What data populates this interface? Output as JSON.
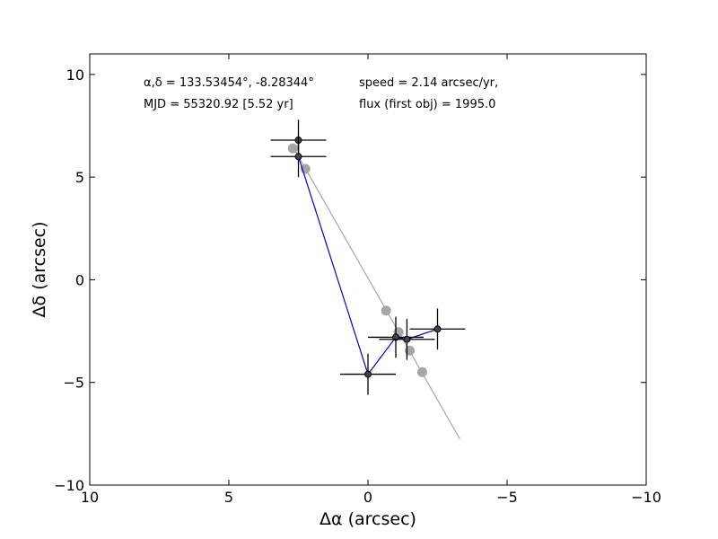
{
  "chart_data": {
    "type": "scatter",
    "title": "",
    "xlabel": "Δα (arcsec)",
    "ylabel": "Δδ (arcsec)",
    "xlim": [
      10,
      -10
    ],
    "ylim": [
      -10,
      11
    ],
    "xticks": [
      10,
      5,
      0,
      -5,
      -10
    ],
    "yticks": [
      10,
      5,
      0,
      -5,
      -10
    ],
    "xtick_labels": [
      "10",
      "5",
      "0",
      "−5",
      "−10"
    ],
    "ytick_labels": [
      "10",
      "5",
      "0",
      "−5",
      "−10"
    ],
    "grid": false,
    "annotations": {
      "coords": "α,δ = 133.53454°, -8.28344°",
      "speed": "speed = 2.14 arcsec/yr,",
      "mjd": "MJD = 55320.92 [5.52 yr]",
      "flux": "flux (first obj) = 1995.0"
    },
    "observations": {
      "color": "#000000",
      "line_color": "#0000cc",
      "points": [
        {
          "x": 2.5,
          "y": 6.8,
          "xerr": 1.0,
          "yerr": 1.0
        },
        {
          "x": 2.5,
          "y": 6.0,
          "xerr": 1.0,
          "yerr": 1.0
        },
        {
          "x": 0.0,
          "y": -4.6,
          "xerr": 1.0,
          "yerr": 1.0
        },
        {
          "x": -1.0,
          "y": -2.8,
          "xerr": 1.0,
          "yerr": 1.0
        },
        {
          "x": -1.4,
          "y": -2.9,
          "xerr": 1.0,
          "yerr": 1.0
        },
        {
          "x": -2.5,
          "y": -2.4,
          "xerr": 1.0,
          "yerr": 1.0
        }
      ]
    },
    "model": {
      "color": "#a6a6a6",
      "points": [
        {
          "x": 2.7,
          "y": 6.4
        },
        {
          "x": 2.25,
          "y": 5.4
        },
        {
          "x": -0.65,
          "y": -1.5
        },
        {
          "x": -1.1,
          "y": -2.55
        },
        {
          "x": -1.5,
          "y": -3.45
        },
        {
          "x": -1.95,
          "y": -4.5
        }
      ],
      "line": [
        {
          "x": 2.6,
          "y": 6.25
        },
        {
          "x": -3.3,
          "y": -7.75
        }
      ]
    }
  }
}
